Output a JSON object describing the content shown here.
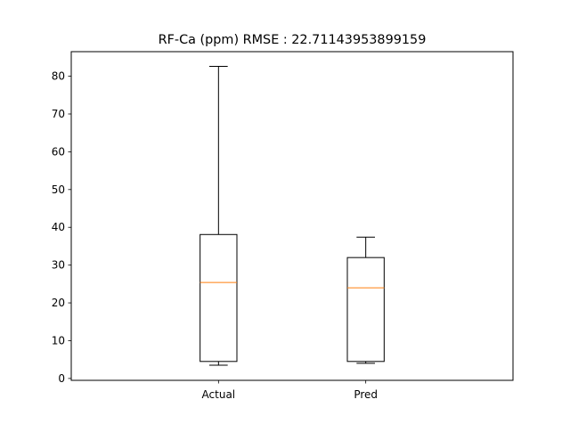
{
  "chart_data": {
    "type": "boxplot",
    "title": "RF-Ca (ppm) RMSE : 22.71143953899159",
    "xlabel": "",
    "ylabel": "",
    "categories": [
      "Actual",
      "Pred"
    ],
    "boxes": [
      {
        "label": "Actual",
        "whisker_low": 3.5,
        "q1": 4.5,
        "median": 25.4,
        "q3": 38.1,
        "whisker_high": 82.6
      },
      {
        "label": "Pred",
        "whisker_low": 4.0,
        "q1": 4.5,
        "median": 24.0,
        "q3": 32.0,
        "whisker_high": 37.4
      }
    ],
    "ylim": [
      -0.5,
      86.5
    ],
    "yticks": [
      0,
      10,
      20,
      30,
      40,
      50,
      60,
      70,
      80
    ],
    "grid": false,
    "colors": {
      "box": "#000000",
      "median": "#ff7f0e",
      "background": "#ffffff"
    }
  }
}
